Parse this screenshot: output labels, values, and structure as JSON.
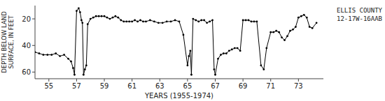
{
  "chart_data": {
    "type": "line",
    "annotations": [
      "ELLIS COUNTY",
      "12-17W-16AAB"
    ],
    "xlabel": "YEARS (1955-1974)",
    "ylabel": [
      "DEPTH BELOW LAND",
      "SURFACE, IN FEET"
    ],
    "xlim": [
      54.0,
      74.8
    ],
    "ylim": [
      65,
      10
    ],
    "xticks": [
      55,
      57,
      59,
      61,
      63,
      65,
      67,
      69,
      71,
      73
    ],
    "yticks": [
      20,
      40,
      60
    ],
    "color": "#000000",
    "marker": "circle",
    "x": [
      54.0,
      54.3,
      54.6,
      54.9,
      55.2,
      55.5,
      55.8,
      56.1,
      56.4,
      56.6,
      56.75,
      56.85,
      57.0,
      57.15,
      57.25,
      57.35,
      57.42,
      57.5,
      57.6,
      57.7,
      57.8,
      58.0,
      58.2,
      58.4,
      58.6,
      58.8,
      59.0,
      59.2,
      59.4,
      59.6,
      59.8,
      60.0,
      60.2,
      60.4,
      60.6,
      60.8,
      61.0,
      61.2,
      61.4,
      61.6,
      61.8,
      62.0,
      62.3,
      62.6,
      62.9,
      63.2,
      63.5,
      63.8,
      64.1,
      64.4,
      64.7,
      65.0,
      65.1,
      65.2,
      65.28,
      65.4,
      65.6,
      65.8,
      66.0,
      66.2,
      66.4,
      66.6,
      66.8,
      66.92,
      67.0,
      67.2,
      67.4,
      67.6,
      67.8,
      68.0,
      68.2,
      68.4,
      68.6,
      68.8,
      69.0,
      69.2,
      69.4,
      69.6,
      69.8,
      70.0,
      70.3,
      70.5,
      70.7,
      71.0,
      71.2,
      71.4,
      71.6,
      71.8,
      72.0,
      72.2,
      72.4,
      72.6,
      72.8,
      73.0,
      73.2,
      73.4,
      73.6,
      73.8,
      74.0,
      74.3
    ],
    "values": [
      45,
      46,
      47,
      47,
      47,
      46,
      48,
      47,
      50,
      52,
      57,
      62,
      14,
      12,
      15,
      21,
      23,
      62,
      58,
      55,
      24,
      20,
      19,
      18,
      18,
      18,
      18,
      19,
      20,
      19,
      18,
      19,
      21,
      22,
      22,
      22,
      22,
      21,
      22,
      21,
      22,
      22,
      21,
      22,
      23,
      23,
      22,
      22,
      21,
      22,
      32,
      55,
      48,
      44,
      62,
      20,
      21,
      22,
      21,
      21,
      23,
      22,
      21,
      58,
      62,
      50,
      47,
      46,
      46,
      44,
      43,
      42,
      42,
      44,
      21,
      21,
      21,
      22,
      22,
      22,
      55,
      58,
      42,
      30,
      30,
      29,
      30,
      34,
      36,
      33,
      29,
      28,
      26,
      19,
      18,
      17,
      19,
      26,
      27,
      23
    ]
  }
}
